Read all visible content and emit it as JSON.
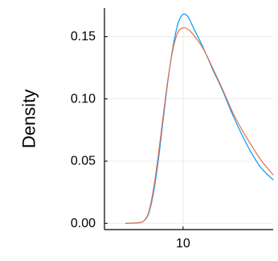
{
  "chart_data": {
    "type": "line",
    "title": "",
    "xlabel": "",
    "ylabel": "Density",
    "xlim": [
      5.2,
      15.5
    ],
    "ylim": [
      -0.005,
      0.173
    ],
    "x_ticks": [
      {
        "value": 10,
        "label": "10"
      }
    ],
    "y_ticks": [
      {
        "value": 0.0,
        "label": "0.00"
      },
      {
        "value": 0.05,
        "label": "0.05"
      },
      {
        "value": 0.1,
        "label": "0.10"
      },
      {
        "value": 0.15,
        "label": "0.15"
      }
    ],
    "grid": true,
    "legend": "none",
    "series": [
      {
        "color": "#009AFA",
        "points": [
          [
            6.5,
            0.0
          ],
          [
            7.3,
            0.0005
          ],
          [
            7.6,
            0.002
          ],
          [
            7.9,
            0.008
          ],
          [
            8.2,
            0.025
          ],
          [
            8.5,
            0.052
          ],
          [
            8.8,
            0.085
          ],
          [
            9.1,
            0.117
          ],
          [
            9.4,
            0.143
          ],
          [
            9.7,
            0.161
          ],
          [
            10.0,
            0.168
          ],
          [
            10.3,
            0.166
          ],
          [
            10.6,
            0.158
          ],
          [
            11.2,
            0.142
          ],
          [
            11.8,
            0.124
          ],
          [
            12.4,
            0.107
          ],
          [
            13.0,
            0.088
          ],
          [
            13.6,
            0.071
          ],
          [
            14.2,
            0.056
          ],
          [
            14.8,
            0.044
          ],
          [
            15.5,
            0.035
          ]
        ]
      },
      {
        "color": "#E36F47",
        "points": [
          [
            6.5,
            0.0
          ],
          [
            7.3,
            0.0005
          ],
          [
            7.6,
            0.002
          ],
          [
            7.9,
            0.009
          ],
          [
            8.2,
            0.028
          ],
          [
            8.5,
            0.056
          ],
          [
            8.8,
            0.088
          ],
          [
            9.1,
            0.118
          ],
          [
            9.4,
            0.141
          ],
          [
            9.7,
            0.154
          ],
          [
            10.0,
            0.157
          ],
          [
            10.3,
            0.156
          ],
          [
            10.6,
            0.152
          ],
          [
            11.2,
            0.141
          ],
          [
            11.8,
            0.125
          ],
          [
            12.4,
            0.108
          ],
          [
            13.0,
            0.09
          ],
          [
            13.6,
            0.075
          ],
          [
            14.2,
            0.062
          ],
          [
            14.8,
            0.05
          ],
          [
            15.5,
            0.039
          ]
        ]
      }
    ]
  }
}
